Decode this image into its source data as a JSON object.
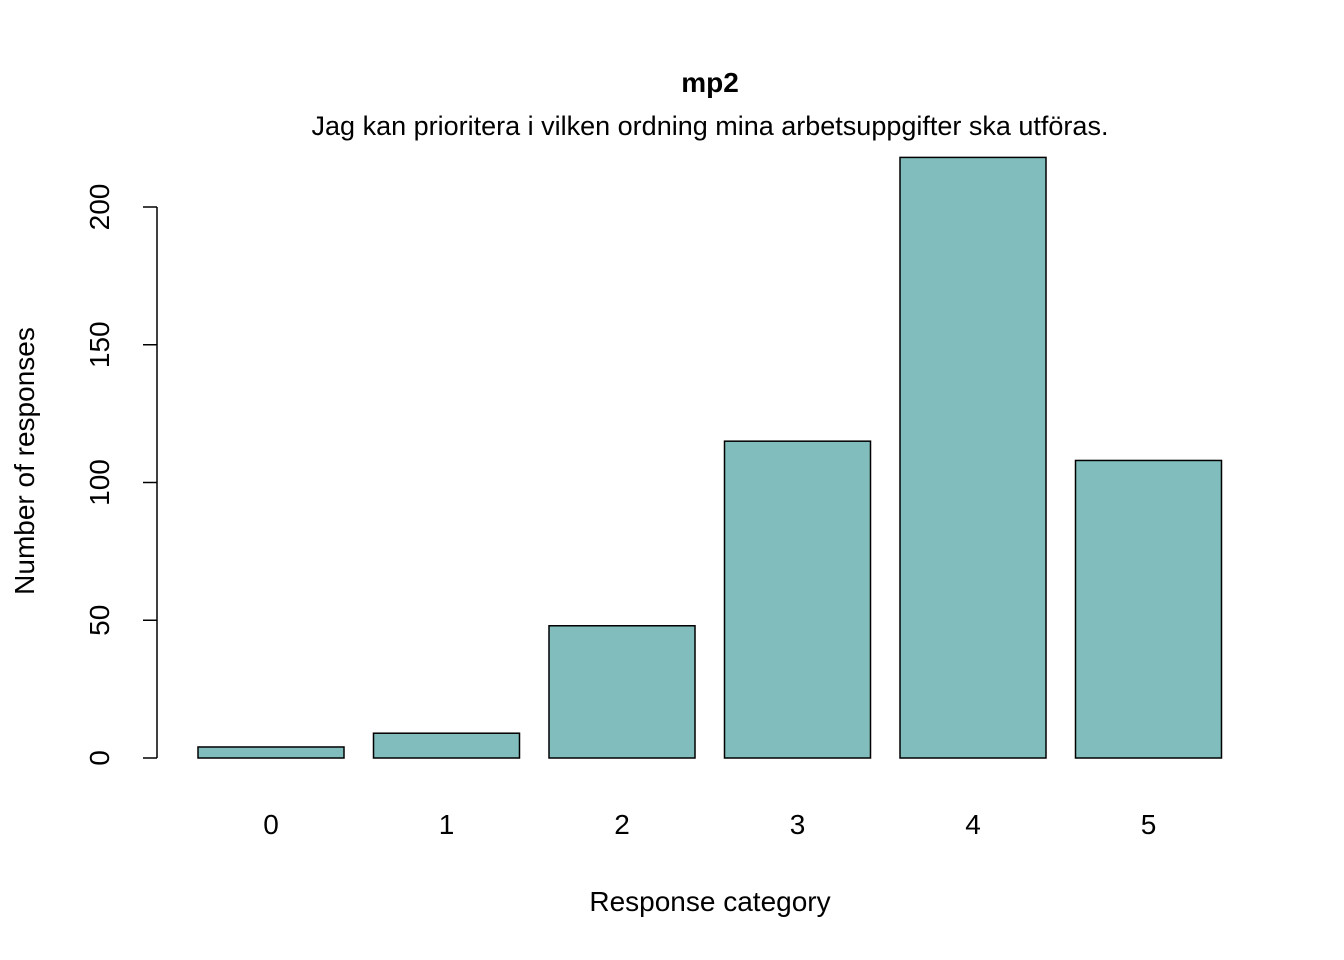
{
  "chart_data": {
    "type": "bar",
    "title": "mp2",
    "subtitle": "Jag kan prioritera i vilken ordning mina arbetsuppgifter ska utföras.",
    "xlabel": "Response category",
    "ylabel": "Number of responses",
    "categories": [
      "0",
      "1",
      "2",
      "3",
      "4",
      "5"
    ],
    "values": [
      4,
      9,
      48,
      115,
      218,
      108
    ],
    "ylim": [
      0,
      218
    ],
    "yticks": [
      0,
      50,
      100,
      150,
      200
    ],
    "bar_color": "#80BDBC",
    "grid": false,
    "legend": "none"
  }
}
